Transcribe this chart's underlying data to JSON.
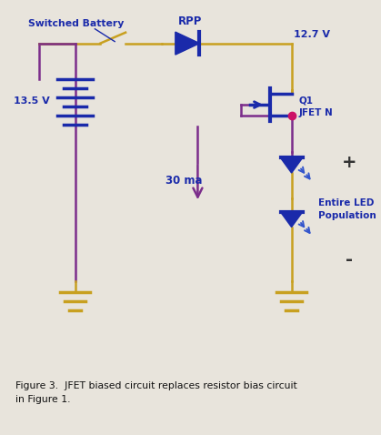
{
  "bg_color": "#e8e4dc",
  "circuit_bg": "#ffffff",
  "wire_gold": "#c8a020",
  "wire_purple": "#7b2d8b",
  "diode_blue": "#1a2aaa",
  "text_blue": "#1a2aaa",
  "text_dark": "#111111",
  "dot_pink": "#cc1166",
  "arrow_purple": "#7b2d8b",
  "led_emit_blue": "#3355cc",
  "caption": "Figure 3.  JFET biased circuit replaces resistor bias circuit\nin Figure 1.",
  "label_battery": "Switched Battery",
  "label_v1": "13.5 V",
  "label_v2": "12.7 V",
  "label_rpp": "RPP",
  "label_q1": "Q1\nJFET N",
  "label_30ma": "30 ma",
  "label_led": "Entire LED\nPopulation",
  "label_plus": "+",
  "label_minus": "-"
}
